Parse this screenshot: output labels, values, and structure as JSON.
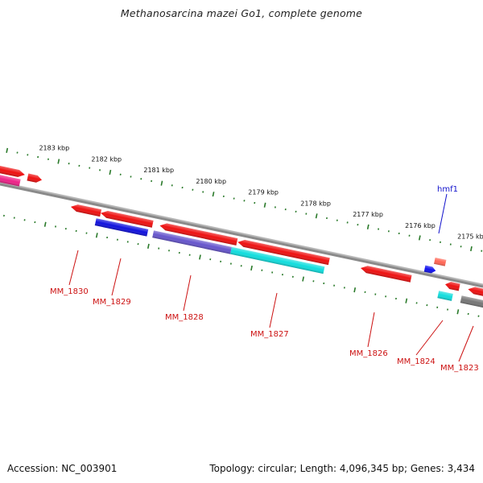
{
  "title": "Methanosarcina mazei Go1, complete genome",
  "footer": {
    "accession": "Accession: NC_003901",
    "summary": "Topology: circular; Length: 4,096,345 bp; Genes: 3,434"
  },
  "colors": {
    "backbone": "#8a8a8a",
    "tick": "#2a7a2a",
    "label_red": "#cc1111",
    "label_blue": "#1111cc"
  },
  "ticks": [
    {
      "label": "2183 kbp"
    },
    {
      "label": "2182 kbp"
    },
    {
      "label": "2181 kbp"
    },
    {
      "label": "2180 kbp"
    },
    {
      "label": "2179 kbp"
    },
    {
      "label": "2178 kbp"
    },
    {
      "label": "2177 kbp"
    },
    {
      "label": "2176 kbp"
    },
    {
      "label": "2175 kbp"
    }
  ],
  "gene_labels": [
    {
      "text": "MM_1830",
      "color": "red"
    },
    {
      "text": "MM_1829",
      "color": "red"
    },
    {
      "text": "MM_1828",
      "color": "red"
    },
    {
      "text": "MM_1827",
      "color": "red"
    },
    {
      "text": "MM_1826",
      "color": "red"
    },
    {
      "text": "MM_1824",
      "color": "red"
    },
    {
      "text": "MM_1823",
      "color": "red"
    },
    {
      "text": "hmf1",
      "color": "blue"
    }
  ],
  "features": [
    {
      "name": "gene-fwd-1",
      "strand": "+",
      "color": "#ee1111"
    },
    {
      "name": "gene-fwd-2",
      "strand": "+",
      "color": "#ee1111"
    },
    {
      "name": "cds-fwd-1",
      "strand": "+",
      "color": "#ee2288"
    },
    {
      "name": "gene-rev-1",
      "strand": "-",
      "color": "#ee1111"
    },
    {
      "name": "gene-rev-2",
      "strand": "-",
      "color": "#ee1111"
    },
    {
      "name": "cds-rev-2",
      "strand": "-",
      "color": "#1111dd"
    },
    {
      "name": "gene-rev-3",
      "strand": "-",
      "color": "#ee1111"
    },
    {
      "name": "cds-rev-3",
      "strand": "-",
      "color": "#6655cc"
    },
    {
      "name": "gene-rev-4",
      "strand": "-",
      "color": "#ee1111"
    },
    {
      "name": "cds-rev-4",
      "strand": "-",
      "color": "#11dddd"
    },
    {
      "name": "gene-rev-5",
      "strand": "-",
      "color": "#ee1111"
    },
    {
      "name": "gene-hmf1",
      "strand": "+",
      "color": "#ff6655"
    },
    {
      "name": "cds-hmf1",
      "strand": "+",
      "color": "#1111ee"
    },
    {
      "name": "gene-rev-6",
      "strand": "-",
      "color": "#ee1111"
    },
    {
      "name": "cds-rev-6",
      "strand": "-",
      "color": "#11dddd"
    },
    {
      "name": "gene-rev-7",
      "strand": "-",
      "color": "#ee1111"
    },
    {
      "name": "cds-rev-7",
      "strand": "-",
      "color": "#777777"
    }
  ]
}
